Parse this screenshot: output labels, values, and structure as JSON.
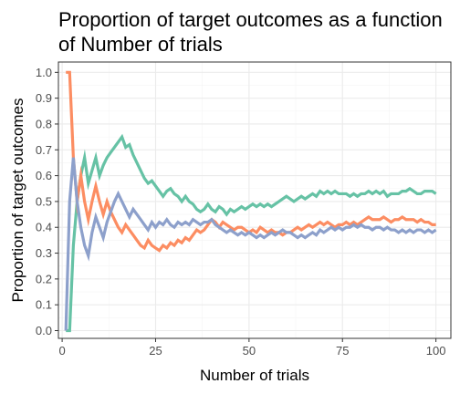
{
  "chart_data": {
    "type": "line",
    "title": "Proportion of target outcomes as a function of Number of trials",
    "xlabel": "Number of trials",
    "ylabel": "Proportion of target outcomes",
    "xlim": [
      -1,
      104
    ],
    "ylim": [
      -0.03,
      1.04
    ],
    "x_ticks": [
      0,
      25,
      50,
      75,
      100
    ],
    "y_ticks": [
      0.0,
      0.1,
      0.2,
      0.3,
      0.4,
      0.5,
      0.6,
      0.7,
      0.8,
      0.9,
      1.0
    ],
    "grid": true,
    "legend": "none",
    "panel_border_color": "#333333",
    "grid_major_color": "#ebebeb",
    "grid_minor_color": "#f5f5f5",
    "series": [
      {
        "color": "#66c2a5",
        "x": [
          1,
          2,
          3,
          4,
          5,
          6,
          7,
          8,
          9,
          10,
          11,
          12,
          13,
          14,
          15,
          16,
          17,
          18,
          19,
          20,
          21,
          22,
          23,
          24,
          25,
          26,
          27,
          28,
          29,
          30,
          31,
          32,
          33,
          34,
          35,
          36,
          37,
          38,
          39,
          40,
          41,
          42,
          43,
          44,
          45,
          46,
          47,
          48,
          49,
          50,
          51,
          52,
          53,
          54,
          55,
          56,
          57,
          58,
          59,
          60,
          61,
          62,
          63,
          64,
          65,
          66,
          67,
          68,
          69,
          70,
          71,
          72,
          73,
          74,
          75,
          76,
          77,
          78,
          79,
          80,
          81,
          82,
          83,
          84,
          85,
          86,
          87,
          88,
          89,
          90,
          91,
          92,
          93,
          94,
          95,
          96,
          97,
          98,
          99,
          100
        ],
        "values": [
          0.0,
          0.0,
          0.33,
          0.5,
          0.6,
          0.67,
          0.57,
          0.62,
          0.67,
          0.6,
          0.64,
          0.67,
          0.69,
          0.71,
          0.73,
          0.75,
          0.71,
          0.72,
          0.68,
          0.65,
          0.62,
          0.59,
          0.57,
          0.58,
          0.56,
          0.54,
          0.52,
          0.54,
          0.55,
          0.53,
          0.52,
          0.5,
          0.52,
          0.5,
          0.49,
          0.47,
          0.46,
          0.47,
          0.49,
          0.47,
          0.46,
          0.48,
          0.47,
          0.45,
          0.47,
          0.46,
          0.47,
          0.48,
          0.47,
          0.48,
          0.49,
          0.48,
          0.49,
          0.48,
          0.49,
          0.48,
          0.49,
          0.5,
          0.51,
          0.52,
          0.51,
          0.5,
          0.51,
          0.52,
          0.51,
          0.52,
          0.53,
          0.52,
          0.54,
          0.53,
          0.54,
          0.53,
          0.54,
          0.53,
          0.53,
          0.53,
          0.52,
          0.53,
          0.52,
          0.53,
          0.53,
          0.54,
          0.53,
          0.54,
          0.53,
          0.54,
          0.52,
          0.53,
          0.53,
          0.53,
          0.54,
          0.54,
          0.55,
          0.54,
          0.53,
          0.53,
          0.54,
          0.54,
          0.54,
          0.53
        ]
      },
      {
        "color": "#fc8d62",
        "x": [
          1,
          2,
          3,
          4,
          5,
          6,
          7,
          8,
          9,
          10,
          11,
          12,
          13,
          14,
          15,
          16,
          17,
          18,
          19,
          20,
          21,
          22,
          23,
          24,
          25,
          26,
          27,
          28,
          29,
          30,
          31,
          32,
          33,
          34,
          35,
          36,
          37,
          38,
          39,
          40,
          41,
          42,
          43,
          44,
          45,
          46,
          47,
          48,
          49,
          50,
          51,
          52,
          53,
          54,
          55,
          56,
          57,
          58,
          59,
          60,
          61,
          62,
          63,
          64,
          65,
          66,
          67,
          68,
          69,
          70,
          71,
          72,
          73,
          74,
          75,
          76,
          77,
          78,
          79,
          80,
          81,
          82,
          83,
          84,
          85,
          86,
          87,
          88,
          89,
          90,
          91,
          92,
          93,
          94,
          95,
          96,
          97,
          98,
          99,
          100
        ],
        "values": [
          1.0,
          1.0,
          0.67,
          0.5,
          0.6,
          0.5,
          0.43,
          0.5,
          0.56,
          0.5,
          0.45,
          0.5,
          0.46,
          0.43,
          0.4,
          0.38,
          0.41,
          0.39,
          0.37,
          0.35,
          0.33,
          0.32,
          0.35,
          0.33,
          0.32,
          0.31,
          0.33,
          0.32,
          0.34,
          0.33,
          0.35,
          0.34,
          0.36,
          0.35,
          0.37,
          0.39,
          0.38,
          0.39,
          0.41,
          0.43,
          0.42,
          0.4,
          0.42,
          0.41,
          0.4,
          0.39,
          0.4,
          0.4,
          0.39,
          0.38,
          0.39,
          0.38,
          0.4,
          0.39,
          0.38,
          0.39,
          0.38,
          0.38,
          0.37,
          0.38,
          0.38,
          0.39,
          0.4,
          0.39,
          0.4,
          0.41,
          0.4,
          0.41,
          0.42,
          0.41,
          0.42,
          0.41,
          0.4,
          0.41,
          0.41,
          0.42,
          0.41,
          0.42,
          0.41,
          0.42,
          0.43,
          0.44,
          0.43,
          0.43,
          0.43,
          0.44,
          0.43,
          0.42,
          0.43,
          0.43,
          0.44,
          0.43,
          0.43,
          0.43,
          0.42,
          0.43,
          0.42,
          0.42,
          0.41,
          0.41
        ]
      },
      {
        "color": "#8da0cb",
        "x": [
          1,
          2,
          3,
          4,
          5,
          6,
          7,
          8,
          9,
          10,
          11,
          12,
          13,
          14,
          15,
          16,
          17,
          18,
          19,
          20,
          21,
          22,
          23,
          24,
          25,
          26,
          27,
          28,
          29,
          30,
          31,
          32,
          33,
          34,
          35,
          36,
          37,
          38,
          39,
          40,
          41,
          42,
          43,
          44,
          45,
          46,
          47,
          48,
          49,
          50,
          51,
          52,
          53,
          54,
          55,
          56,
          57,
          58,
          59,
          60,
          61,
          62,
          63,
          64,
          65,
          66,
          67,
          68,
          69,
          70,
          71,
          72,
          73,
          74,
          75,
          76,
          77,
          78,
          79,
          80,
          81,
          82,
          83,
          84,
          85,
          86,
          87,
          88,
          89,
          90,
          91,
          92,
          93,
          94,
          95,
          96,
          97,
          98,
          99,
          100
        ],
        "values": [
          0.0,
          0.5,
          0.67,
          0.5,
          0.4,
          0.33,
          0.29,
          0.38,
          0.44,
          0.4,
          0.36,
          0.42,
          0.46,
          0.5,
          0.53,
          0.5,
          0.47,
          0.44,
          0.47,
          0.45,
          0.43,
          0.41,
          0.39,
          0.42,
          0.4,
          0.42,
          0.41,
          0.43,
          0.41,
          0.4,
          0.42,
          0.41,
          0.42,
          0.41,
          0.43,
          0.42,
          0.41,
          0.42,
          0.42,
          0.43,
          0.41,
          0.4,
          0.39,
          0.38,
          0.39,
          0.38,
          0.37,
          0.38,
          0.37,
          0.38,
          0.37,
          0.36,
          0.37,
          0.36,
          0.37,
          0.38,
          0.37,
          0.38,
          0.39,
          0.38,
          0.38,
          0.37,
          0.36,
          0.37,
          0.36,
          0.37,
          0.38,
          0.37,
          0.39,
          0.38,
          0.39,
          0.4,
          0.39,
          0.4,
          0.39,
          0.4,
          0.4,
          0.41,
          0.4,
          0.41,
          0.4,
          0.4,
          0.39,
          0.4,
          0.4,
          0.39,
          0.4,
          0.39,
          0.39,
          0.38,
          0.39,
          0.38,
          0.39,
          0.38,
          0.39,
          0.39,
          0.38,
          0.39,
          0.38,
          0.39
        ]
      }
    ]
  }
}
